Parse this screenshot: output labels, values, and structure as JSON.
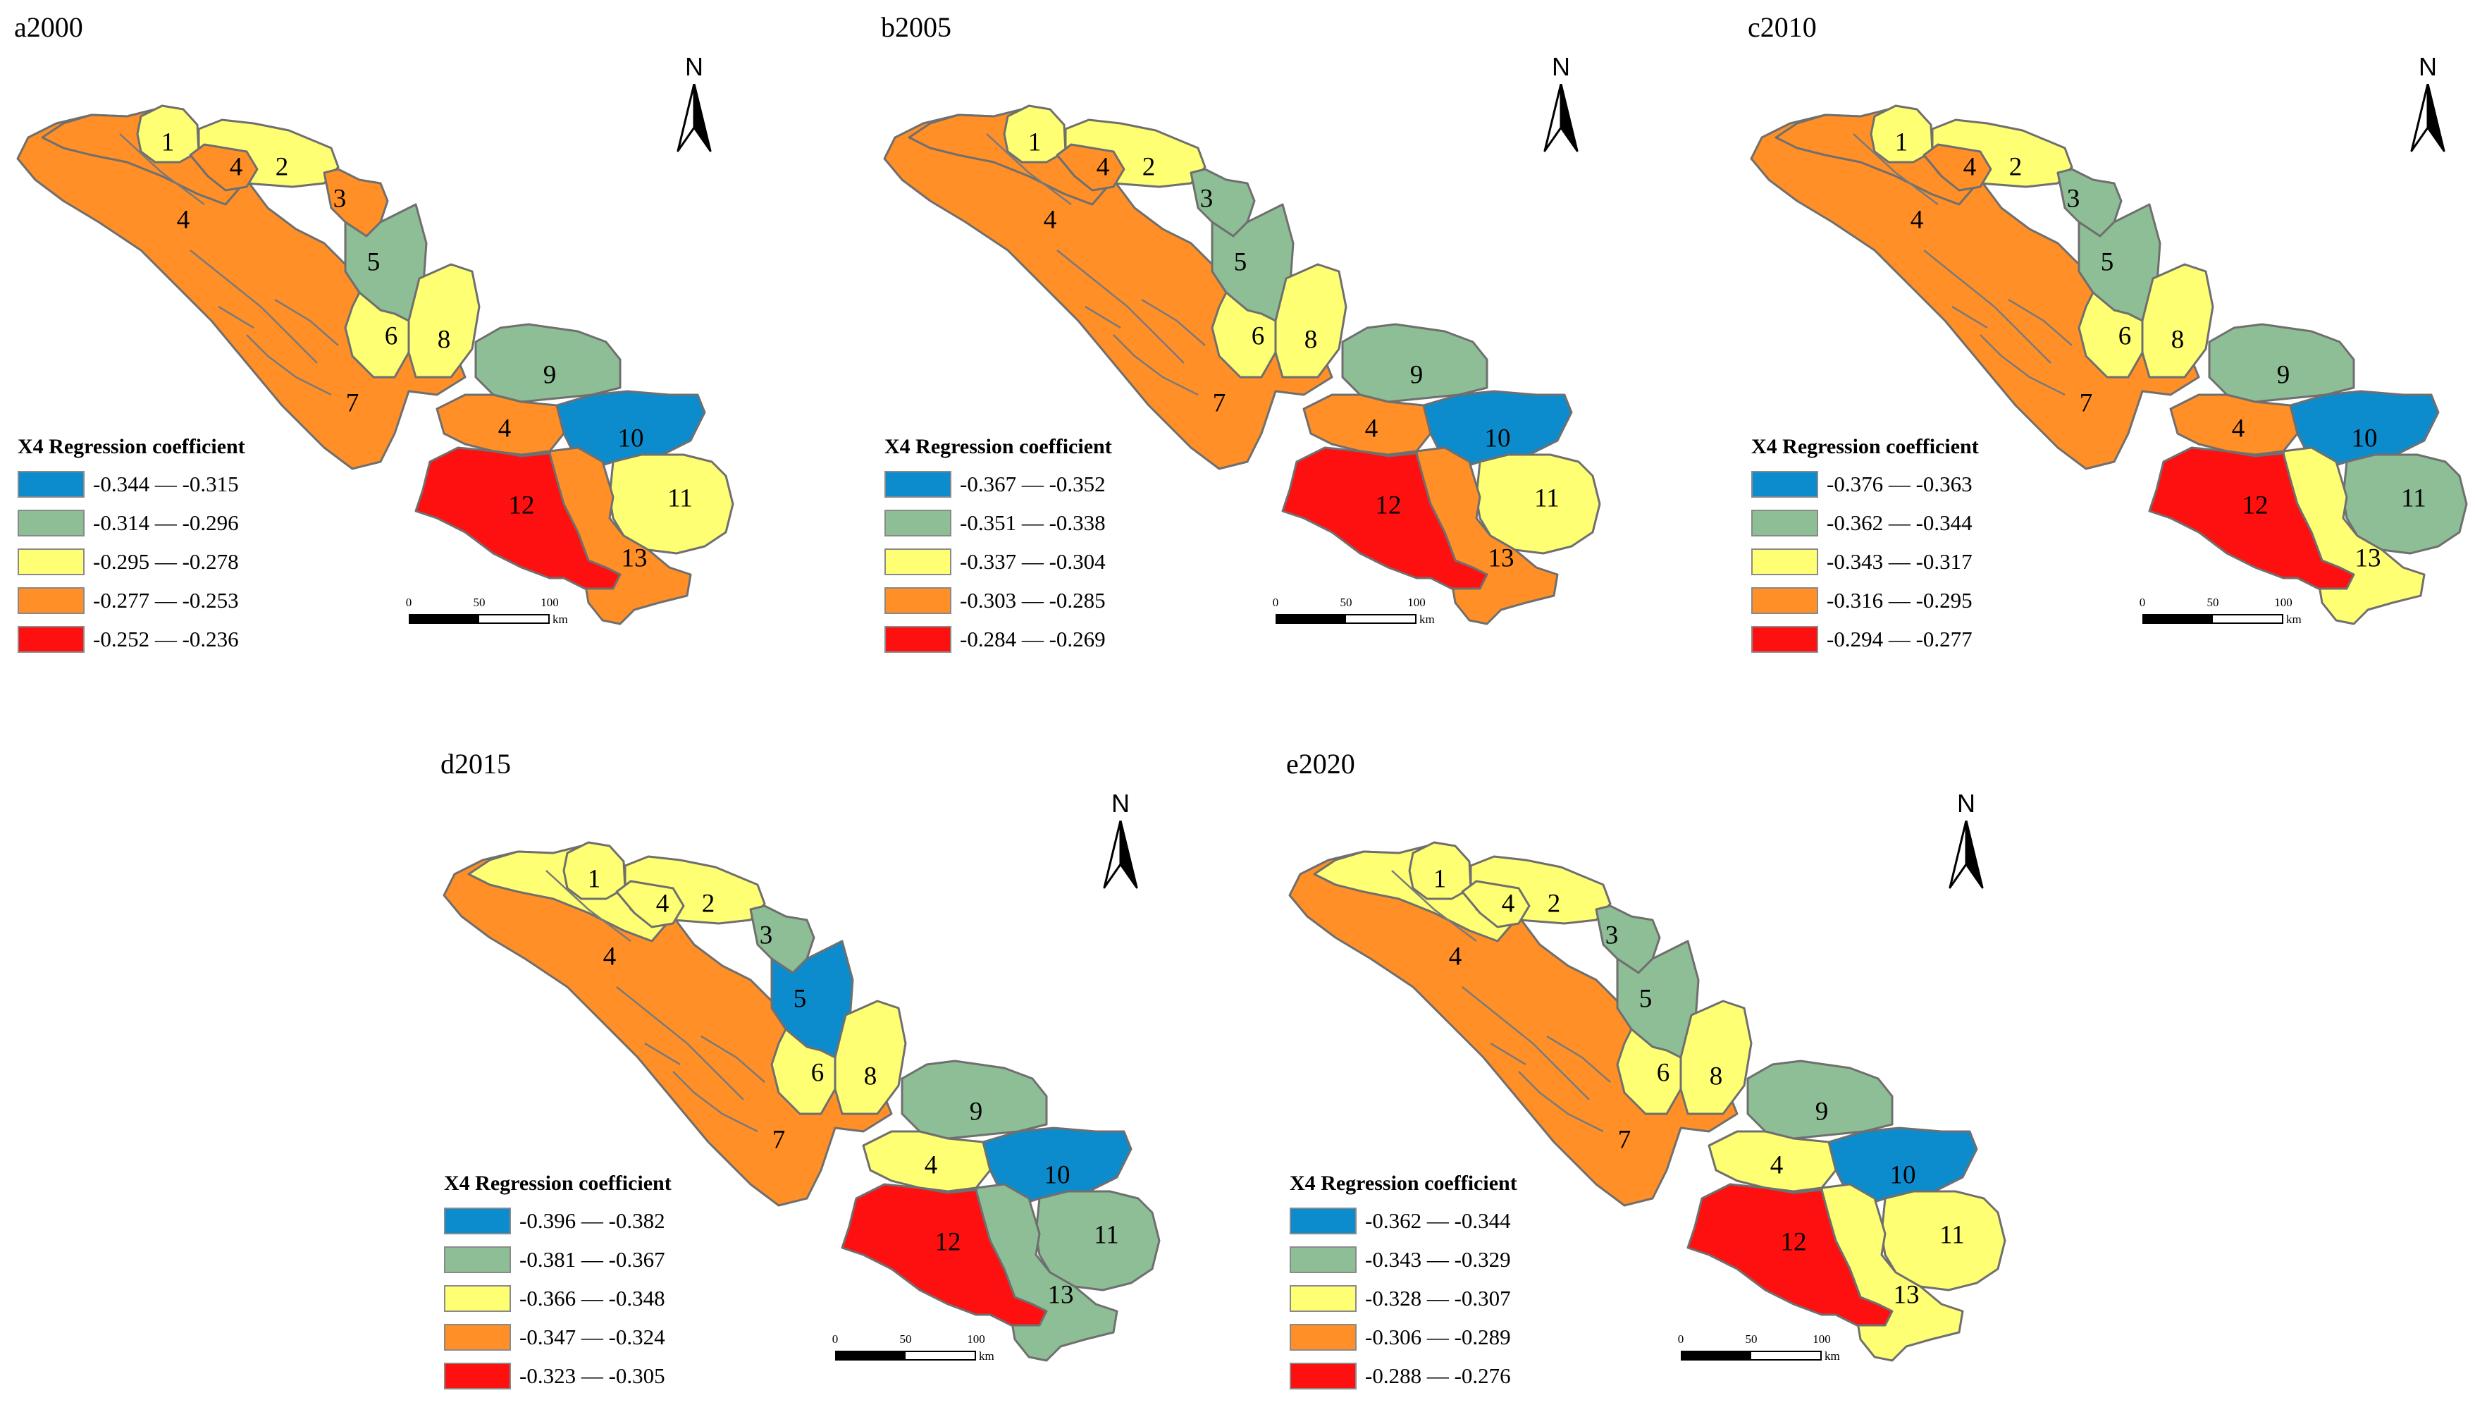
{
  "colors": {
    "blue": "#0d8ccd",
    "green": "#8ebe96",
    "yellow": "#ffff73",
    "orange": "#ff8f26",
    "red": "#ff1010"
  },
  "north_label": "N",
  "scale": {
    "ticks": [
      "0",
      "50",
      "100"
    ],
    "unit": "km"
  },
  "panels": [
    {
      "title": "a2000",
      "legend": {
        "title": "X4 Regression coefficient",
        "classes": [
          {
            "label": "-0.344 — -0.315",
            "color": "blue"
          },
          {
            "label": "-0.314 — -0.296",
            "color": "green"
          },
          {
            "label": "-0.295 — -0.278",
            "color": "yellow"
          },
          {
            "label": "-0.277 — -0.253",
            "color": "orange"
          },
          {
            "label": "-0.252 — -0.236",
            "color": "red"
          }
        ]
      },
      "regions": {
        "1": "yellow",
        "2": "yellow",
        "3": "orange",
        "4a": "orange",
        "4": "orange",
        "4c": "orange",
        "5": "green",
        "6": "yellow",
        "7": "orange",
        "8": "yellow",
        "9": "green",
        "10": "blue",
        "11": "yellow",
        "12": "red",
        "13": "orange"
      }
    },
    {
      "title": "b2005",
      "legend": {
        "title": "X4 Regression coefficient",
        "classes": [
          {
            "label": "-0.367 — -0.352",
            "color": "blue"
          },
          {
            "label": "-0.351 — -0.338",
            "color": "green"
          },
          {
            "label": "-0.337 — -0.304",
            "color": "yellow"
          },
          {
            "label": "-0.303 — -0.285",
            "color": "orange"
          },
          {
            "label": "-0.284 — -0.269",
            "color": "red"
          }
        ]
      },
      "regions": {
        "1": "yellow",
        "2": "yellow",
        "3": "green",
        "4a": "orange",
        "4": "orange",
        "4c": "orange",
        "5": "green",
        "6": "yellow",
        "7": "orange",
        "8": "yellow",
        "9": "green",
        "10": "blue",
        "11": "yellow",
        "12": "red",
        "13": "orange"
      }
    },
    {
      "title": "c2010",
      "legend": {
        "title": "X4 Regression coefficient",
        "classes": [
          {
            "label": "-0.376 — -0.363",
            "color": "blue"
          },
          {
            "label": "-0.362 — -0.344",
            "color": "green"
          },
          {
            "label": "-0.343 — -0.317",
            "color": "yellow"
          },
          {
            "label": "-0.316 — -0.295",
            "color": "orange"
          },
          {
            "label": "-0.294 — -0.277",
            "color": "red"
          }
        ]
      },
      "regions": {
        "1": "yellow",
        "2": "yellow",
        "3": "green",
        "4a": "orange",
        "4": "orange",
        "4c": "orange",
        "5": "green",
        "6": "yellow",
        "7": "orange",
        "8": "yellow",
        "9": "green",
        "10": "blue",
        "11": "green",
        "12": "red",
        "13": "yellow"
      }
    },
    {
      "title": "d2015",
      "legend": {
        "title": "X4 Regression coefficient",
        "classes": [
          {
            "label": "-0.396 — -0.382",
            "color": "blue"
          },
          {
            "label": "-0.381 — -0.367",
            "color": "green"
          },
          {
            "label": "-0.366 — -0.348",
            "color": "yellow"
          },
          {
            "label": "-0.347 — -0.324",
            "color": "orange"
          },
          {
            "label": "-0.323 — -0.305",
            "color": "red"
          }
        ]
      },
      "regions": {
        "1": "yellow",
        "2": "yellow",
        "3": "green",
        "4a": "yellow",
        "4": "yellow",
        "4c": "yellow",
        "5": "blue",
        "6": "yellow",
        "7": "orange",
        "8": "yellow",
        "9": "green",
        "10": "blue",
        "11": "green",
        "12": "red",
        "13": "green"
      }
    },
    {
      "title": "e2020",
      "legend": {
        "title": "X4 Regression coefficient",
        "classes": [
          {
            "label": "-0.362 — -0.344",
            "color": "blue"
          },
          {
            "label": "-0.343 — -0.329",
            "color": "green"
          },
          {
            "label": "-0.328 — -0.307",
            "color": "yellow"
          },
          {
            "label": "-0.306 — -0.289",
            "color": "orange"
          },
          {
            "label": "-0.288 — -0.276",
            "color": "red"
          }
        ]
      },
      "regions": {
        "1": "yellow",
        "2": "yellow",
        "3": "green",
        "4a": "yellow",
        "4": "yellow",
        "4c": "yellow",
        "5": "green",
        "6": "yellow",
        "7": "orange",
        "8": "yellow",
        "9": "green",
        "10": "blue",
        "11": "yellow",
        "12": "red",
        "13": "yellow"
      }
    }
  ]
}
